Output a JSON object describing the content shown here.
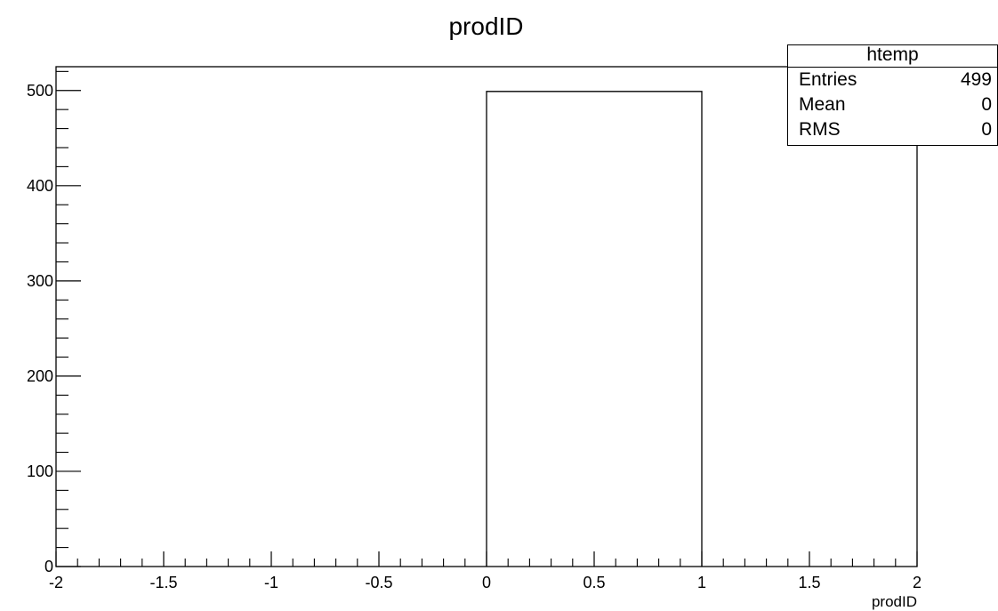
{
  "chart_data": {
    "type": "bar",
    "title": "prodID",
    "xlabel": "prodID",
    "ylabel": "",
    "xlim": [
      -2,
      2
    ],
    "ylim": [
      0,
      525
    ],
    "bins": [
      {
        "x0": 0,
        "x1": 1,
        "y": 499
      }
    ],
    "x_ticks": [
      "-2",
      "-1.5",
      "-1",
      "-0.5",
      "0",
      "0.5",
      "1",
      "1.5",
      "2"
    ],
    "y_ticks": [
      "0",
      "100",
      "200",
      "300",
      "400",
      "500"
    ]
  },
  "stats_box": {
    "name": "htemp",
    "rows": [
      {
        "label": "Entries",
        "value": "499"
      },
      {
        "label": "Mean",
        "value": "0"
      },
      {
        "label": "RMS",
        "value": "0"
      }
    ]
  }
}
